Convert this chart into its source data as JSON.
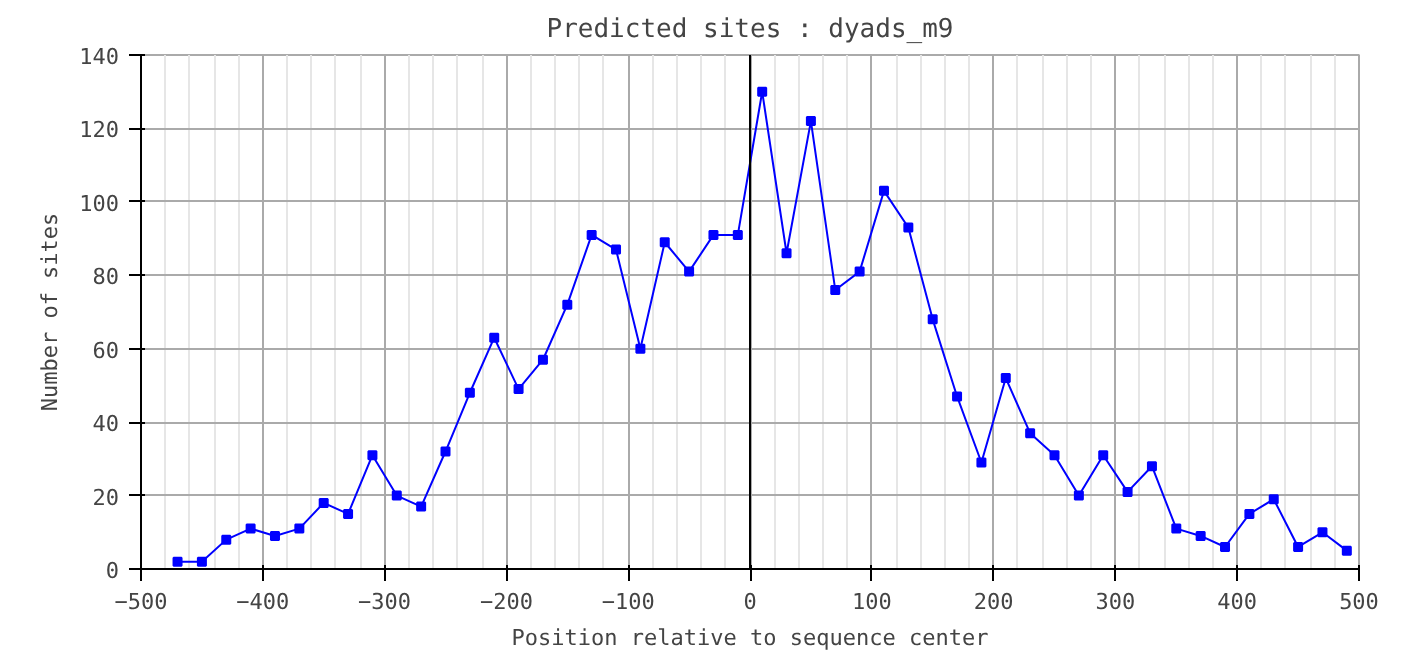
{
  "chart_data": {
    "type": "line",
    "title": "Predicted sites : dyads_m9",
    "xlabel": "Position relative to sequence center",
    "ylabel": "Number of sites",
    "x": [
      -470,
      -450,
      -430,
      -410,
      -390,
      -370,
      -350,
      -330,
      -310,
      -290,
      -270,
      -250,
      -230,
      -210,
      -190,
      -170,
      -150,
      -130,
      -110,
      -90,
      -70,
      -50,
      -30,
      -10,
      10,
      30,
      50,
      70,
      90,
      110,
      130,
      150,
      170,
      190,
      210,
      230,
      250,
      270,
      290,
      310,
      330,
      350,
      370,
      390,
      410,
      430,
      450,
      470,
      490
    ],
    "series": [
      {
        "color": "#0000ff",
        "values": [
          2,
          2,
          8,
          11,
          9,
          11,
          18,
          15,
          31,
          20,
          17,
          32,
          48,
          63,
          49,
          57,
          72,
          91,
          87,
          60,
          89,
          81,
          91,
          91,
          130,
          86,
          122,
          76,
          81,
          103,
          93,
          68,
          47,
          29,
          52,
          37,
          31,
          20,
          31,
          21,
          28,
          11,
          9,
          6,
          15,
          19,
          6,
          10,
          5
        ]
      }
    ],
    "xlim": [
      -500,
      500
    ],
    "xticks": [
      -500,
      -400,
      -300,
      -200,
      -100,
      0,
      100,
      200,
      300,
      400,
      500
    ],
    "ylim": [
      0,
      140
    ],
    "yticks": [
      0,
      20,
      40,
      60,
      80,
      100,
      120,
      140
    ],
    "grid": true,
    "marker": "square",
    "line_style": "solid",
    "ref_lines": [
      {
        "axis": "x",
        "value": 0,
        "color": "#000000"
      }
    ]
  }
}
